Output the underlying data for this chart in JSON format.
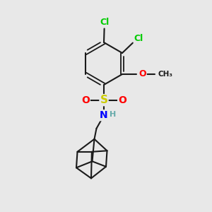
{
  "bg_color": "#e8e8e8",
  "bond_color": "#1a1a1a",
  "atom_colors": {
    "Cl": "#00cc00",
    "O": "#ff0000",
    "S": "#cccc00",
    "N": "#0000ff",
    "H": "#66aaaa",
    "C": "#1a1a1a"
  },
  "lw": 1.5,
  "fs": 9
}
